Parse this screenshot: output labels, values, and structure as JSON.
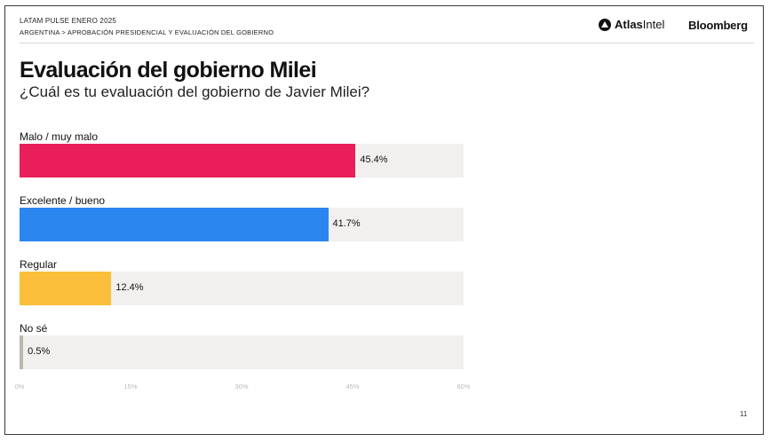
{
  "header": {
    "kicker": "LATAM PULSE ENERO 2025",
    "breadcrumb": "ARGENTINA > APROBACIÓN PRESIDENCIAL Y EVALUACIÓN DEL GOBIERNO",
    "brand_atlas_bold": "Atlas",
    "brand_atlas_rest": "Intel",
    "brand_bloomberg": "Bloomberg"
  },
  "chart_data": {
    "type": "bar",
    "orientation": "horizontal",
    "title": "Evaluación del gobierno Milei",
    "subtitle": "¿Cuál es tu evaluación del gobierno de Javier Milei?",
    "categories": [
      "Malo / muy malo",
      "Excelente / bueno",
      "Regular",
      "No sé"
    ],
    "values": [
      45.4,
      41.7,
      12.4,
      0.5
    ],
    "value_labels": [
      "45.4%",
      "41.7%",
      "12.4%",
      "0.5%"
    ],
    "colors": [
      "#e91e5a",
      "#2b86f0",
      "#fbbf3c",
      "#bdb7ad"
    ],
    "track_color": "#f1f0ee",
    "xlim": [
      0,
      60
    ],
    "xticks": [
      0,
      15,
      30,
      45,
      60
    ],
    "xtick_labels": [
      "0%",
      "15%",
      "30%",
      "45%",
      "60%"
    ],
    "grid": false,
    "legend": "none"
  },
  "footer": {
    "page_number": "11"
  }
}
